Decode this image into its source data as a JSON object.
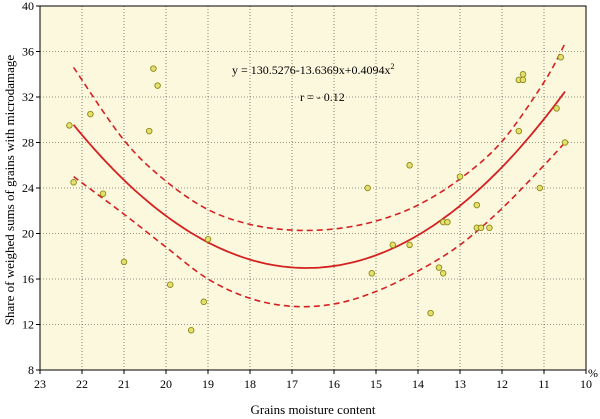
{
  "chart_data": {
    "type": "scatter",
    "xlabel": "Grains  moisture content",
    "ylabel": "Share of weighed sums of grains with microdamage",
    "x_unit": "%",
    "x_reversed": true,
    "xlim": [
      23,
      10
    ],
    "ylim": [
      8,
      40
    ],
    "x_ticks": [
      "23",
      "22",
      "21",
      "20",
      "19",
      "18",
      "17",
      "16",
      "15",
      "14",
      "13",
      "12",
      "11",
      "10"
    ],
    "y_ticks": [
      "8",
      "12",
      "16",
      "20",
      "24",
      "28",
      "32",
      "36",
      "40"
    ],
    "equation": "y = 130.5276-13.6369x+0.4094x",
    "equation_exponent": "2",
    "r_text": "r = - 0.12",
    "grid": true,
    "colors": {
      "plot_background": "#fbf8de",
      "fit_line": "#d42121",
      "point_fill": "#e4e06e",
      "point_stroke": "#8f8a1a",
      "grid": "#333333"
    },
    "fit": {
      "a": 130.5276,
      "b": -13.6369,
      "c": 0.4094
    },
    "confidence_band": {
      "x": [
        22.2,
        21.0,
        20.0,
        19.0,
        18.0,
        17.0,
        16.0,
        15.0,
        14.0,
        13.0,
        12.0,
        11.0,
        10.5
      ],
      "upper": [
        34.6,
        28.2,
        24.6,
        22.1,
        20.8,
        20.3,
        20.4,
        21.1,
        22.5,
        24.8,
        28.1,
        33.3,
        36.7
      ],
      "lower": [
        25.0,
        21.7,
        18.8,
        16.0,
        14.3,
        13.6,
        13.8,
        14.9,
        16.7,
        19.0,
        22.2,
        26.0,
        28.0
      ]
    },
    "points": [
      {
        "x": 22.3,
        "y": 29.5
      },
      {
        "x": 22.2,
        "y": 24.5
      },
      {
        "x": 21.8,
        "y": 30.5
      },
      {
        "x": 21.5,
        "y": 23.5
      },
      {
        "x": 21.0,
        "y": 17.5
      },
      {
        "x": 20.4,
        "y": 29.0
      },
      {
        "x": 20.3,
        "y": 34.5
      },
      {
        "x": 20.2,
        "y": 33.0
      },
      {
        "x": 19.9,
        "y": 15.5
      },
      {
        "x": 19.4,
        "y": 11.5
      },
      {
        "x": 19.1,
        "y": 14.0
      },
      {
        "x": 19.0,
        "y": 19.5
      },
      {
        "x": 15.2,
        "y": 24.0
      },
      {
        "x": 15.1,
        "y": 16.5
      },
      {
        "x": 14.6,
        "y": 19.0
      },
      {
        "x": 14.2,
        "y": 26.0
      },
      {
        "x": 14.2,
        "y": 19.0
      },
      {
        "x": 13.7,
        "y": 13.0
      },
      {
        "x": 13.5,
        "y": 17.0
      },
      {
        "x": 13.4,
        "y": 21.0
      },
      {
        "x": 13.4,
        "y": 16.5
      },
      {
        "x": 13.3,
        "y": 21.0
      },
      {
        "x": 13.0,
        "y": 25.0
      },
      {
        "x": 12.6,
        "y": 22.5
      },
      {
        "x": 12.6,
        "y": 20.5
      },
      {
        "x": 12.5,
        "y": 20.5
      },
      {
        "x": 12.3,
        "y": 20.5
      },
      {
        "x": 11.6,
        "y": 29.0
      },
      {
        "x": 11.6,
        "y": 33.5
      },
      {
        "x": 11.5,
        "y": 33.5
      },
      {
        "x": 11.5,
        "y": 34.0
      },
      {
        "x": 11.1,
        "y": 24.0
      },
      {
        "x": 10.7,
        "y": 31.0
      },
      {
        "x": 10.6,
        "y": 35.5
      },
      {
        "x": 10.5,
        "y": 28.0
      }
    ]
  }
}
